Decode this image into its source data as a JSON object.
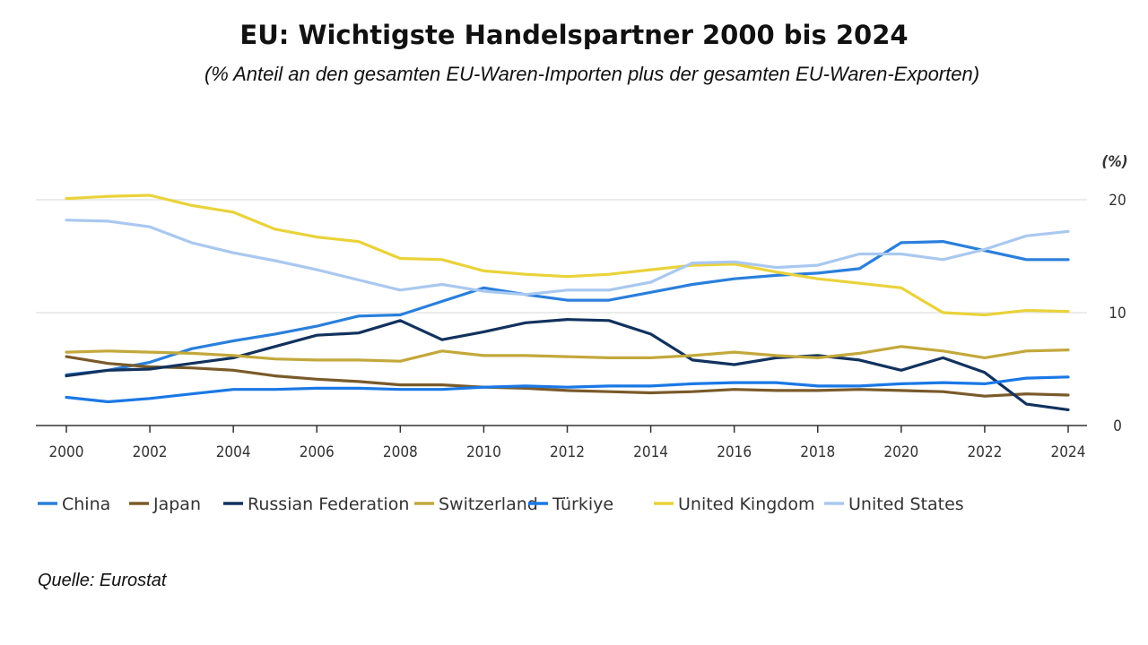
{
  "title": "EU: Wichtigste Handelspartner 2000 bis 2024",
  "subtitle": "(% Anteil an den gesamten EU-Waren-Importen plus der gesamten EU-Waren-Exporten)",
  "source": "Quelle: Eurostat",
  "chart_data": {
    "type": "line",
    "ylabel": "(%)",
    "ylim": [
      0,
      20
    ],
    "yticks": [
      "0",
      "10",
      "20"
    ],
    "x": [
      2000,
      2001,
      2002,
      2003,
      2004,
      2005,
      2006,
      2007,
      2008,
      2009,
      2010,
      2011,
      2012,
      2013,
      2014,
      2015,
      2016,
      2017,
      2018,
      2019,
      2020,
      2021,
      2022,
      2023,
      2024
    ],
    "xticks": [
      "2000",
      "2002",
      "2004",
      "2006",
      "2008",
      "2010",
      "2012",
      "2014",
      "2016",
      "2018",
      "2020",
      "2022",
      "2024"
    ],
    "grid": "horizontal",
    "legend": "bottom",
    "series": [
      {
        "name": "China",
        "color": "#2a7fdc",
        "values": [
          4.5,
          4.9,
          5.6,
          6.8,
          7.5,
          8.1,
          8.8,
          9.7,
          9.8,
          11.0,
          12.2,
          11.6,
          11.1,
          11.1,
          11.8,
          12.5,
          13.0,
          13.3,
          13.5,
          13.9,
          16.2,
          16.3,
          15.5,
          14.7,
          14.7
        ]
      },
      {
        "name": "Japan",
        "color": "#7a5a2a",
        "values": [
          6.1,
          5.5,
          5.2,
          5.1,
          4.9,
          4.4,
          4.1,
          3.9,
          3.6,
          3.6,
          3.4,
          3.3,
          3.1,
          3.0,
          2.9,
          3.0,
          3.2,
          3.1,
          3.1,
          3.2,
          3.1,
          3.0,
          2.6,
          2.8,
          2.7
        ]
      },
      {
        "name": "Russian Federation",
        "color": "#12325e",
        "values": [
          4.4,
          4.9,
          5.0,
          5.5,
          6.0,
          7.0,
          8.0,
          8.2,
          9.3,
          7.6,
          8.3,
          9.1,
          9.4,
          9.3,
          8.1,
          5.8,
          5.4,
          6.0,
          6.2,
          5.8,
          4.9,
          6.0,
          4.7,
          1.9,
          1.4
        ]
      },
      {
        "name": "Switzerland",
        "color": "#c3a83b",
        "values": [
          6.5,
          6.6,
          6.5,
          6.4,
          6.2,
          5.9,
          5.8,
          5.8,
          5.7,
          6.6,
          6.2,
          6.2,
          6.1,
          6.0,
          6.0,
          6.2,
          6.5,
          6.2,
          6.0,
          6.4,
          7.0,
          6.6,
          6.0,
          6.6,
          6.7
        ]
      },
      {
        "name": "Türkiye",
        "color": "#1a78e6",
        "values": [
          2.5,
          2.1,
          2.4,
          2.8,
          3.2,
          3.2,
          3.3,
          3.3,
          3.2,
          3.2,
          3.4,
          3.5,
          3.4,
          3.5,
          3.5,
          3.7,
          3.8,
          3.8,
          3.5,
          3.5,
          3.7,
          3.8,
          3.7,
          4.2,
          4.3
        ]
      },
      {
        "name": "United Kingdom",
        "color": "#ead23a",
        "values": [
          20.1,
          20.3,
          20.4,
          19.5,
          18.9,
          17.4,
          16.7,
          16.3,
          14.8,
          14.7,
          13.7,
          13.4,
          13.2,
          13.4,
          13.8,
          14.2,
          14.3,
          13.6,
          13.0,
          12.6,
          12.2,
          10.0,
          9.8,
          10.2,
          10.1
        ]
      },
      {
        "name": "United States",
        "color": "#a9c8f0",
        "values": [
          18.2,
          18.1,
          17.6,
          16.2,
          15.3,
          14.6,
          13.8,
          12.9,
          12.0,
          12.5,
          11.9,
          11.6,
          12.0,
          12.0,
          12.7,
          14.4,
          14.5,
          14.0,
          14.2,
          15.2,
          15.2,
          14.7,
          15.6,
          16.8,
          17.2
        ]
      }
    ]
  }
}
